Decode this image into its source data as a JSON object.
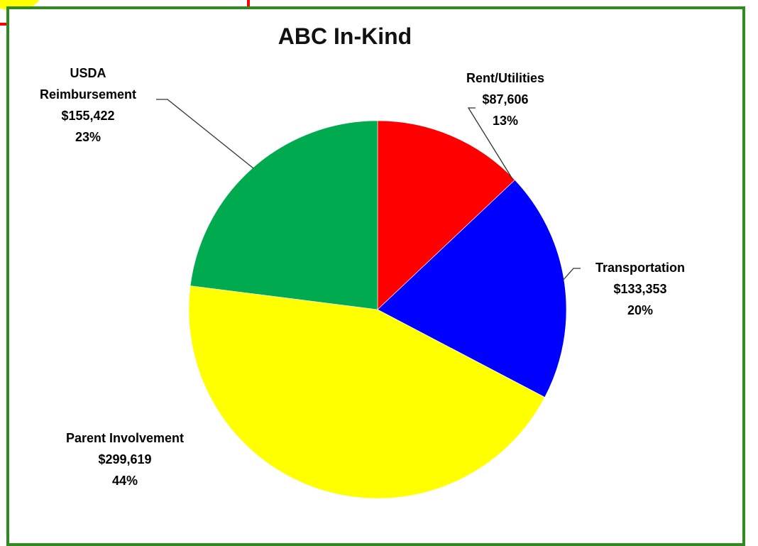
{
  "chart_data": {
    "type": "pie",
    "title": "ABC In-Kind",
    "slices": [
      {
        "label": "Rent/Utilities",
        "label_lines": [
          "Rent/Utilities"
        ],
        "value": 87606,
        "value_label": "$87,606",
        "percent_label": "13%",
        "color": "#ff0000"
      },
      {
        "label": "Transportation",
        "label_lines": [
          "Transportation"
        ],
        "value": 133353,
        "value_label": "$133,353",
        "percent_label": "20%",
        "color": "#0000ff"
      },
      {
        "label": "Parent Involvement",
        "label_lines": [
          "Parent Involvement"
        ],
        "value": 299619,
        "value_label": "$299,619",
        "percent_label": "44%",
        "color": "#ffff00"
      },
      {
        "label": "USDA Reimbursement",
        "label_lines": [
          "USDA",
          "Reimbursement"
        ],
        "value": 155422,
        "value_label": "$155,422",
        "percent_label": "23%",
        "color": "#00aa4f"
      }
    ],
    "start_angle": "12 o'clock",
    "direction": "clockwise",
    "legend": "none",
    "data_labels": "outside with leader lines"
  },
  "colors": {
    "frame": "#2e8b1e"
  }
}
